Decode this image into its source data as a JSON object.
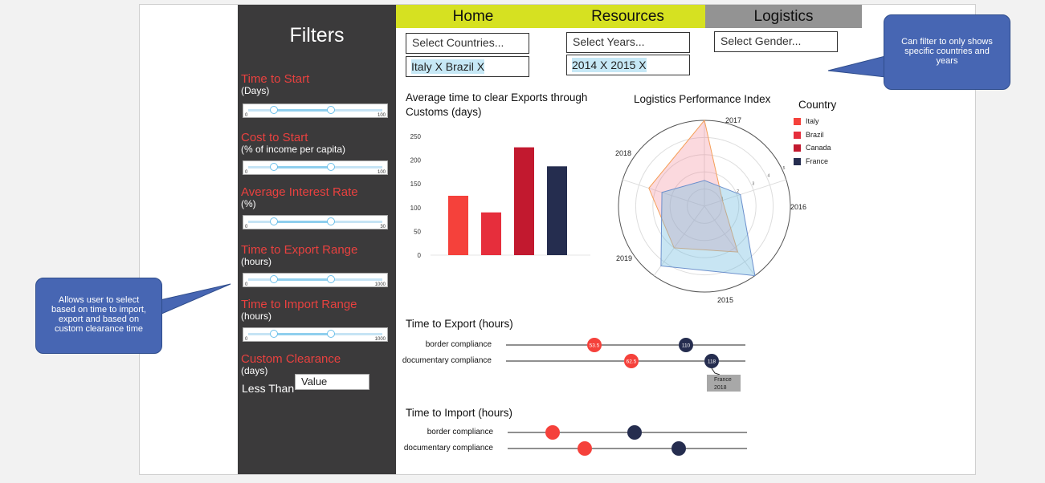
{
  "nav": {
    "home": "Home",
    "resources": "Resources",
    "logistics": "Logistics"
  },
  "sidebar": {
    "title": "Filters",
    "filters": [
      {
        "label": "Time to Start",
        "sub": "(Days)",
        "min": "0",
        "max": "100"
      },
      {
        "label": "Cost to Start",
        "sub": "(% of income per capita)",
        "min": "0",
        "max": "100"
      },
      {
        "label": "Average Interest Rate",
        "sub": "(%)",
        "min": "0",
        "max": "30"
      },
      {
        "label": "Time to Export Range",
        "sub": "(hours)",
        "min": "0",
        "max": "1000"
      },
      {
        "label": "Time to Import Range",
        "sub": "(hours)",
        "min": "0",
        "max": "1000"
      }
    ],
    "custom_clearance": {
      "label": "Custom Clearance",
      "sub": "(days)",
      "less_than": "Less Than",
      "value_placeholder": "Value"
    }
  },
  "filters_top": {
    "countries_placeholder": "Select Countries...",
    "countries_selected": "Italy X Brazil X",
    "years_placeholder": "Select Years...",
    "years_selected": "2014 X 2015 X",
    "gender_placeholder": "Select Gender..."
  },
  "callouts": {
    "right": "Can filter to only shows specific countries and years",
    "left": "Allows user to select based on time to import, export and based on custom clearance time"
  },
  "colors": {
    "italy": "#f5413b",
    "brazil": "#e62e3c",
    "canada": "#c2192f",
    "france": "#252d4f",
    "accent": "#d6e121",
    "sidebar": "#3b3a3b"
  },
  "chart_data": [
    {
      "type": "bar",
      "title": "Average time to clear Exports through Customs (days)",
      "title_line1": "Average time to clear Exports through",
      "title_line2": "Customs (days)",
      "categories": [
        "Italy",
        "Brazil",
        "Canada",
        "France"
      ],
      "values": [
        125,
        90,
        227,
        187
      ],
      "ylim": [
        0,
        250
      ],
      "yticks": [
        "0",
        "50",
        "100",
        "150",
        "200",
        "250"
      ]
    },
    {
      "type": "radar",
      "title": "Logistics Performance Index",
      "axes": [
        "2017",
        "2016",
        "2015",
        "2019",
        "2018"
      ],
      "rticks": [
        "1",
        "2",
        "3",
        "4",
        "5"
      ],
      "series": [
        {
          "name": "Italy",
          "values": [
            1.1,
            5.0,
            3.4,
            3.0,
            3.3
          ]
        },
        {
          "name": "France",
          "values": [
            2.2,
            1.5,
            2.6,
            4.3,
            5.0
          ]
        }
      ],
      "legend_title": "Country",
      "legend": [
        "Italy",
        "Brazil",
        "Canada",
        "France"
      ]
    },
    {
      "type": "dot",
      "title": "Time to Export (hours)",
      "rows": [
        "border compliance",
        "documentary compliance"
      ],
      "values": [
        [
          53.5,
          110
        ],
        [
          62.5,
          118
        ]
      ],
      "value_labels": [
        [
          "53.5",
          "110"
        ],
        [
          "62.5",
          "118"
        ]
      ],
      "tooltip": {
        "line1": "France",
        "line2": "2018"
      }
    },
    {
      "type": "dot",
      "title": "Time to Import (hours)",
      "rows": [
        "border compliance",
        "documentary compliance"
      ]
    }
  ]
}
